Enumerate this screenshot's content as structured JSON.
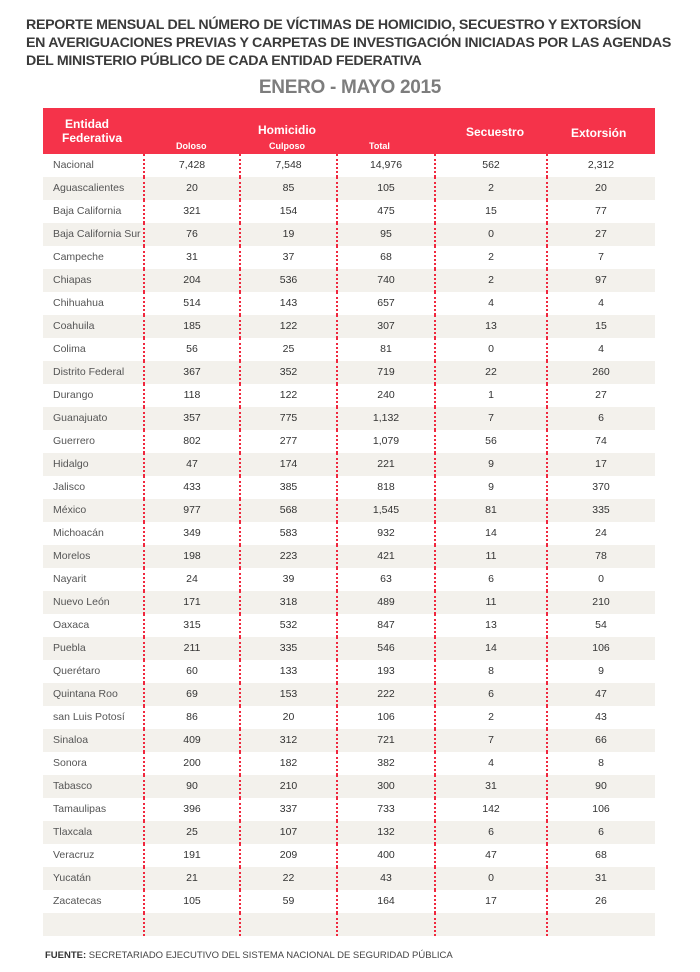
{
  "title_lines": [
    "REPORTE MENSUAL DEL NÚMERO DE VÍCTIMAS DE HOMICIDIO, SECUESTRO Y EXTORSÍON",
    "EN AVERIGUACIONES PREVIAS Y CARPETAS DE INVESTIGACIÓN INICIADAS POR LAS AGENDAS",
    "DEL MINISTERIO PÚBLICO DE CADA ENTIDAD FEDERATIVA"
  ],
  "period": "ENERO - MAYO 2015",
  "colors": {
    "header_bg": "#f5334a",
    "divider": "#f0283e",
    "alt_row": "#f3f1ec"
  },
  "header": {
    "entity_line1": "Entidad",
    "entity_line2": "Federativa",
    "homicidio": "Homicidio",
    "doloso": "Doloso",
    "culposo": "Culposo",
    "total": "Total",
    "secuestro": "Secuestro",
    "extorsion": "Extorsión"
  },
  "rows": [
    [
      "Nacional",
      "7,428",
      "7,548",
      "14,976",
      "562",
      "2,312"
    ],
    [
      "Aguascalientes",
      "20",
      "85",
      "105",
      "2",
      "20"
    ],
    [
      "Baja California",
      "321",
      "154",
      "475",
      "15",
      "77"
    ],
    [
      "Baja California Sur",
      "76",
      "19",
      "95",
      "0",
      "27"
    ],
    [
      "Campeche",
      "31",
      "37",
      "68",
      "2",
      "7"
    ],
    [
      "Chiapas",
      "204",
      "536",
      "740",
      "2",
      "97"
    ],
    [
      "Chihuahua",
      "514",
      "143",
      "657",
      "4",
      "4"
    ],
    [
      "Coahuila",
      "185",
      "122",
      "307",
      "13",
      "15"
    ],
    [
      "Colima",
      "56",
      "25",
      "81",
      "0",
      "4"
    ],
    [
      "Distrito Federal",
      "367",
      "352",
      "719",
      "22",
      "260"
    ],
    [
      "Durango",
      "118",
      "122",
      "240",
      "1",
      "27"
    ],
    [
      "Guanajuato",
      "357",
      "775",
      "1,132",
      "7",
      "6"
    ],
    [
      "Guerrero",
      "802",
      "277",
      "1,079",
      "56",
      "74"
    ],
    [
      "Hidalgo",
      "47",
      "174",
      "221",
      "9",
      "17"
    ],
    [
      "Jalisco",
      "433",
      "385",
      "818",
      "9",
      "370"
    ],
    [
      "México",
      "977",
      "568",
      "1,545",
      "81",
      "335"
    ],
    [
      "Michoacán",
      "349",
      "583",
      "932",
      "14",
      "24"
    ],
    [
      "Morelos",
      "198",
      "223",
      "421",
      "11",
      "78"
    ],
    [
      "Nayarit",
      "24",
      "39",
      "63",
      "6",
      "0"
    ],
    [
      "Nuevo León",
      "171",
      "318",
      "489",
      "11",
      "210"
    ],
    [
      "Oaxaca",
      "315",
      "532",
      "847",
      "13",
      "54"
    ],
    [
      "Puebla",
      "211",
      "335",
      "546",
      "14",
      "106"
    ],
    [
      "Querétaro",
      "60",
      "133",
      "193",
      "8",
      "9"
    ],
    [
      "Quintana Roo",
      "69",
      "153",
      "222",
      "6",
      "47"
    ],
    [
      "san Luis Potosí",
      "86",
      "20",
      "106",
      "2",
      "43"
    ],
    [
      "Sinaloa",
      "409",
      "312",
      "721",
      "7",
      "66"
    ],
    [
      "Sonora",
      "200",
      "182",
      "382",
      "4",
      "8"
    ],
    [
      "Tabasco",
      "90",
      "210",
      "300",
      "31",
      "90"
    ],
    [
      "Tamaulipas",
      "396",
      "337",
      "733",
      "142",
      "106"
    ],
    [
      "Tlaxcala",
      "25",
      "107",
      "132",
      "6",
      "6"
    ],
    [
      "Veracruz",
      "191",
      "209",
      "400",
      "47",
      "68"
    ],
    [
      "Yucatán",
      "21",
      "22",
      "43",
      "0",
      "31"
    ],
    [
      "Zacatecas",
      "105",
      "59",
      "164",
      "17",
      "26"
    ],
    [
      "",
      "",
      "",
      "",
      "",
      ""
    ]
  ],
  "source_label": "FUENTE:",
  "source_text": " SECRETARIADO EJECUTIVO DEL SISTEMA NACIONAL DE SEGURIDAD PÚBLICA"
}
